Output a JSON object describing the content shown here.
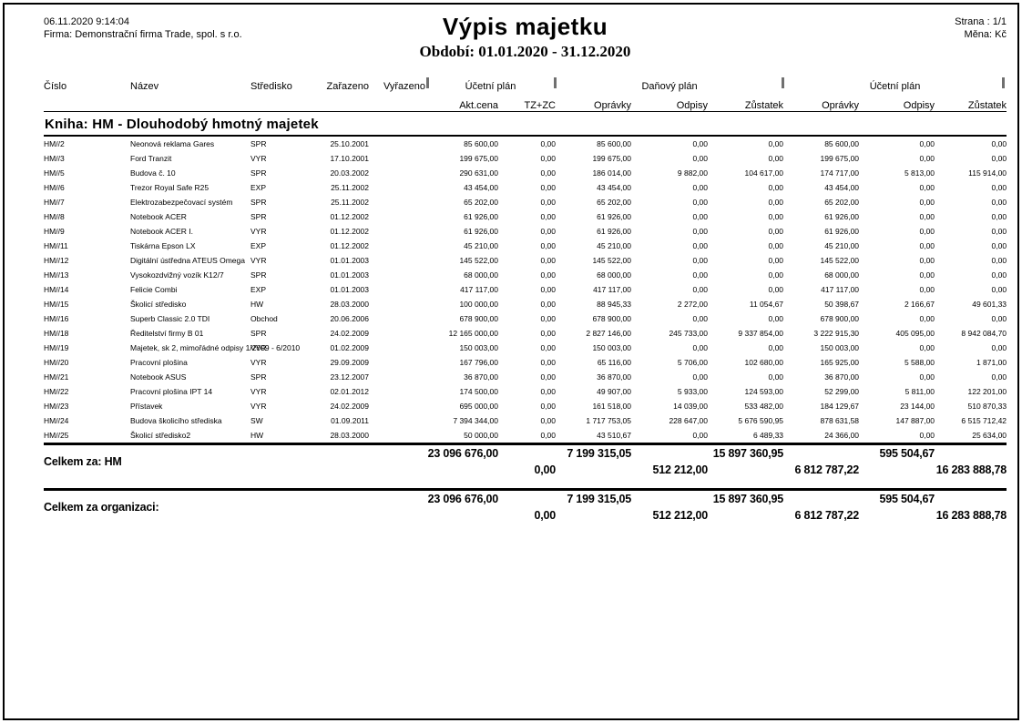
{
  "page": {
    "datetime": "06.11.2020 9:14:04",
    "company": "Firma: Demonstrační firma Trade, spol. s r.o.",
    "title": "Výpis majetku",
    "period": "Období: 01.01.2020 - 31.12.2020",
    "page_label": "Strana : 1/1",
    "currency_label": "Měna: Kč"
  },
  "table": {
    "columns": [
      "Číslo",
      "Název",
      "Středisko",
      "Zařazeno",
      "Vyřazeno"
    ],
    "groups": [
      {
        "label": "Účetní plán",
        "sub": [
          "Akt.cena",
          "TZ+ZC"
        ]
      },
      {
        "label": "Daňový plán",
        "sub": [
          "Oprávky",
          "Odpisy",
          "Zůstatek"
        ]
      },
      {
        "label": "Účetní plán",
        "sub": [
          "Oprávky",
          "Odpisy",
          "Zůstatek"
        ]
      }
    ],
    "section_title": "Kniha: HM - Dlouhodobý hmotný majetek",
    "rows": [
      {
        "cislo": "HM//2",
        "nazev": "Neonová reklama Gares",
        "stredisko": "SPR",
        "zarazeno": "25.10.2001",
        "vyrazeno": "",
        "values": [
          "85 600,00",
          "0,00",
          "85 600,00",
          "0,00",
          "0,00",
          "85 600,00",
          "0,00",
          "0,00"
        ]
      },
      {
        "cislo": "HM//3",
        "nazev": "Ford Tranzit",
        "stredisko": "VYR",
        "zarazeno": "17.10.2001",
        "vyrazeno": "",
        "values": [
          "199 675,00",
          "0,00",
          "199 675,00",
          "0,00",
          "0,00",
          "199 675,00",
          "0,00",
          "0,00"
        ]
      },
      {
        "cislo": "HM//5",
        "nazev": "Budova č. 10",
        "stredisko": "SPR",
        "zarazeno": "20.03.2002",
        "vyrazeno": "",
        "values": [
          "290 631,00",
          "0,00",
          "186 014,00",
          "9 882,00",
          "104 617,00",
          "174 717,00",
          "5 813,00",
          "115 914,00"
        ]
      },
      {
        "cislo": "HM//6",
        "nazev": "Trezor Royal Safe R25",
        "stredisko": "EXP",
        "zarazeno": "25.11.2002",
        "vyrazeno": "",
        "values": [
          "43 454,00",
          "0,00",
          "43 454,00",
          "0,00",
          "0,00",
          "43 454,00",
          "0,00",
          "0,00"
        ]
      },
      {
        "cislo": "HM//7",
        "nazev": "Elektrozabezpečovací systém",
        "stredisko": "SPR",
        "zarazeno": "25.11.2002",
        "vyrazeno": "",
        "values": [
          "65 202,00",
          "0,00",
          "65 202,00",
          "0,00",
          "0,00",
          "65 202,00",
          "0,00",
          "0,00"
        ]
      },
      {
        "cislo": "HM//8",
        "nazev": "Notebook ACER",
        "stredisko": "SPR",
        "zarazeno": "01.12.2002",
        "vyrazeno": "",
        "values": [
          "61 926,00",
          "0,00",
          "61 926,00",
          "0,00",
          "0,00",
          "61 926,00",
          "0,00",
          "0,00"
        ]
      },
      {
        "cislo": "HM//9",
        "nazev": "Notebook ACER I.",
        "stredisko": "VYR",
        "zarazeno": "01.12.2002",
        "vyrazeno": "",
        "values": [
          "61 926,00",
          "0,00",
          "61 926,00",
          "0,00",
          "0,00",
          "61 926,00",
          "0,00",
          "0,00"
        ]
      },
      {
        "cislo": "HM//11",
        "nazev": "Tiskárna Epson LX",
        "stredisko": "EXP",
        "zarazeno": "01.12.2002",
        "vyrazeno": "",
        "values": [
          "45 210,00",
          "0,00",
          "45 210,00",
          "0,00",
          "0,00",
          "45 210,00",
          "0,00",
          "0,00"
        ]
      },
      {
        "cislo": "HM//12",
        "nazev": "Digitální ústředna ATEUS Omega",
        "stredisko": "VYR",
        "zarazeno": "01.01.2003",
        "vyrazeno": "",
        "values": [
          "145 522,00",
          "0,00",
          "145 522,00",
          "0,00",
          "0,00",
          "145 522,00",
          "0,00",
          "0,00"
        ]
      },
      {
        "cislo": "HM//13",
        "nazev": "Vysokozdvižný vozík K12/7",
        "stredisko": "SPR",
        "zarazeno": "01.01.2003",
        "vyrazeno": "",
        "values": [
          "68 000,00",
          "0,00",
          "68 000,00",
          "0,00",
          "0,00",
          "68 000,00",
          "0,00",
          "0,00"
        ]
      },
      {
        "cislo": "HM//14",
        "nazev": "Felicie Combi",
        "stredisko": "EXP",
        "zarazeno": "01.01.2003",
        "vyrazeno": "",
        "values": [
          "417 117,00",
          "0,00",
          "417 117,00",
          "0,00",
          "0,00",
          "417 117,00",
          "0,00",
          "0,00"
        ]
      },
      {
        "cislo": "HM//15",
        "nazev": "Školicí středisko",
        "stredisko": "HW",
        "zarazeno": "28.03.2000",
        "vyrazeno": "",
        "values": [
          "100 000,00",
          "0,00",
          "88 945,33",
          "2 272,00",
          "11 054,67",
          "50 398,67",
          "2 166,67",
          "49 601,33"
        ]
      },
      {
        "cislo": "HM//16",
        "nazev": "Superb Classic  2.0 TDI",
        "stredisko": "Obchod",
        "zarazeno": "20.06.2006",
        "vyrazeno": "",
        "values": [
          "678 900,00",
          "0,00",
          "678 900,00",
          "0,00",
          "0,00",
          "678 900,00",
          "0,00",
          "0,00"
        ]
      },
      {
        "cislo": "HM//18",
        "nazev": "Ředitelství firmy B 01",
        "stredisko": "SPR",
        "zarazeno": "24.02.2009",
        "vyrazeno": "",
        "values": [
          "12 165 000,00",
          "0,00",
          "2 827 146,00",
          "245 733,00",
          "9 337 854,00",
          "3 222 915,30",
          "405 095,00",
          "8 942 084,70"
        ]
      },
      {
        "cislo": "HM//19",
        "nazev": "Majetek, sk 2, mimořádné odpisy 1/2009 - 6/2010",
        "stredisko": "VYR",
        "zarazeno": "01.02.2009",
        "vyrazeno": "",
        "values": [
          "150 003,00",
          "0,00",
          "150 003,00",
          "0,00",
          "0,00",
          "150 003,00",
          "0,00",
          "0,00"
        ]
      },
      {
        "cislo": "HM//20",
        "nazev": "Pracovní plošina",
        "stredisko": "VYR",
        "zarazeno": "29.09.2009",
        "vyrazeno": "",
        "values": [
          "167 796,00",
          "0,00",
          "65 116,00",
          "5 706,00",
          "102 680,00",
          "165 925,00",
          "5 588,00",
          "1 871,00"
        ]
      },
      {
        "cislo": "HM//21",
        "nazev": "Notebook ASUS",
        "stredisko": "SPR",
        "zarazeno": "23.12.2007",
        "vyrazeno": "",
        "values": [
          "36 870,00",
          "0,00",
          "36 870,00",
          "0,00",
          "0,00",
          "36 870,00",
          "0,00",
          "0,00"
        ]
      },
      {
        "cislo": "HM//22",
        "nazev": "Pracovní plošina IPT 14",
        "stredisko": "VYR",
        "zarazeno": "02.01.2012",
        "vyrazeno": "",
        "values": [
          "174 500,00",
          "0,00",
          "49 907,00",
          "5 933,00",
          "124 593,00",
          "52 299,00",
          "5 811,00",
          "122 201,00"
        ]
      },
      {
        "cislo": "HM//23",
        "nazev": "Přístavek",
        "stredisko": "VYR",
        "zarazeno": "24.02.2009",
        "vyrazeno": "",
        "values": [
          "695 000,00",
          "0,00",
          "161 518,00",
          "14 039,00",
          "533 482,00",
          "184 129,67",
          "23 144,00",
          "510 870,33"
        ]
      },
      {
        "cislo": "HM//24",
        "nazev": "Budova školicího střediska",
        "stredisko": "SW",
        "zarazeno": "01.09.2011",
        "vyrazeno": "",
        "values": [
          "7 394 344,00",
          "0,00",
          "1 717 753,05",
          "228 647,00",
          "5 676 590,95",
          "878 631,58",
          "147 887,00",
          "6 515 712,42"
        ]
      },
      {
        "cislo": "HM//25",
        "nazev": "Školicí středisko2",
        "stredisko": "HW",
        "zarazeno": "28.03.2000",
        "vyrazeno": "",
        "values": [
          "50 000,00",
          "0,00",
          "43 510,67",
          "0,00",
          "6 489,33",
          "24 366,00",
          "0,00",
          "25 634,00"
        ]
      }
    ]
  },
  "totals": [
    {
      "label": "Celkem za: HM",
      "line1": [
        "23 096 676,00",
        "7 199 315,05",
        "15 897 360,95",
        "595 504,67"
      ],
      "line2": [
        "0,00",
        "512 212,00",
        "6 812 787,22",
        "16 283 888,78"
      ]
    },
    {
      "label": "Celkem za organizaci:",
      "line1": [
        "23 096 676,00",
        "7 199 315,05",
        "15 897 360,95",
        "595 504,67"
      ],
      "line2": [
        "0,00",
        "512 212,00",
        "6 812 787,22",
        "16 283 888,78"
      ]
    }
  ]
}
